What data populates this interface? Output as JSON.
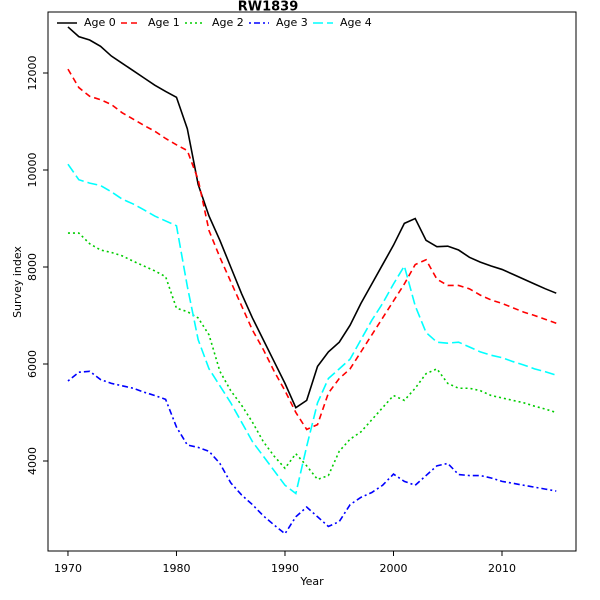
{
  "chart_data": {
    "type": "line",
    "title": "RW1839",
    "x_label": "Year",
    "y_label": "Survey index",
    "x": [
      1970,
      1971,
      1972,
      1973,
      1974,
      1975,
      1976,
      1977,
      1978,
      1979,
      1980,
      1981,
      1982,
      1983,
      1984,
      1985,
      1986,
      1987,
      1988,
      1989,
      1990,
      1991,
      1992,
      1993,
      1994,
      1995,
      1996,
      1997,
      1998,
      1999,
      2000,
      2001,
      2002,
      2003,
      2004,
      2005,
      2006,
      2007,
      2008,
      2009,
      2010,
      2011,
      2012,
      2013,
      2014,
      2015
    ],
    "series": [
      {
        "name": "Age 0",
        "color": "#000000",
        "linestyle": "solid",
        "values": [
          12950,
          12750,
          12680,
          12550,
          12350,
          12200,
          12050,
          11900,
          11750,
          11620,
          11500,
          10850,
          9700,
          9050,
          8550,
          8000,
          7450,
          6950,
          6500,
          6050,
          5600,
          5100,
          5250,
          5950,
          6250,
          6450,
          6800,
          7250,
          7650,
          8050,
          8450,
          8900,
          9000,
          8550,
          8420,
          8430,
          8350,
          8200,
          8100,
          8020,
          7950,
          7850,
          7750,
          7650,
          7550,
          7460
        ]
      },
      {
        "name": "Age 1",
        "color": "#ff0000",
        "linestyle": "dashed",
        "values": [
          12080,
          11700,
          11520,
          11450,
          11350,
          11180,
          11050,
          10920,
          10800,
          10650,
          10520,
          10400,
          9800,
          8750,
          8200,
          7700,
          7200,
          6700,
          6300,
          5850,
          5450,
          5000,
          4650,
          4750,
          5400,
          5700,
          5900,
          6250,
          6600,
          6950,
          7300,
          7650,
          8050,
          8150,
          7750,
          7620,
          7620,
          7550,
          7420,
          7320,
          7250,
          7160,
          7070,
          7000,
          6920,
          6840
        ]
      },
      {
        "name": "Age 2",
        "color": "#00cd00",
        "linestyle": "dotted",
        "values": [
          8700,
          8700,
          8480,
          8350,
          8300,
          8230,
          8120,
          8020,
          7920,
          7800,
          7150,
          7080,
          6950,
          6600,
          5850,
          5450,
          5150,
          4800,
          4400,
          4100,
          3850,
          4150,
          3900,
          3620,
          3700,
          4200,
          4450,
          4600,
          4850,
          5100,
          5350,
          5250,
          5500,
          5800,
          5900,
          5600,
          5500,
          5500,
          5450,
          5350,
          5300,
          5250,
          5200,
          5130,
          5070,
          5000
        ]
      },
      {
        "name": "Age 3",
        "color": "#0000ff",
        "linestyle": "dotdash",
        "values": [
          5650,
          5830,
          5850,
          5680,
          5600,
          5550,
          5500,
          5420,
          5350,
          5270,
          4700,
          4330,
          4280,
          4200,
          3950,
          3550,
          3300,
          3100,
          2870,
          2680,
          2500,
          2850,
          3050,
          2850,
          2650,
          2750,
          3100,
          3250,
          3350,
          3500,
          3730,
          3580,
          3500,
          3700,
          3900,
          3950,
          3720,
          3700,
          3700,
          3650,
          3580,
          3540,
          3500,
          3460,
          3420,
          3380
        ]
      },
      {
        "name": "Age 4",
        "color": "#00ffff",
        "linestyle": "longdash",
        "values": [
          10120,
          9800,
          9730,
          9680,
          9550,
          9400,
          9300,
          9180,
          9050,
          8950,
          8850,
          7600,
          6500,
          5900,
          5550,
          5200,
          4800,
          4400,
          4100,
          3800,
          3500,
          3330,
          4300,
          5200,
          5700,
          5900,
          6100,
          6500,
          6900,
          7250,
          7650,
          8020,
          7200,
          6650,
          6450,
          6430,
          6450,
          6350,
          6250,
          6180,
          6130,
          6050,
          5980,
          5900,
          5840,
          5770
        ]
      }
    ],
    "xlim": [
      1968.16,
      2016.82
    ],
    "ylim": [
      2144,
      13258
    ],
    "xticks": [
      1970,
      1980,
      1990,
      2000,
      2010
    ],
    "yticks": [
      4000,
      6000,
      8000,
      10000,
      12000
    ],
    "legend": "top-left"
  }
}
